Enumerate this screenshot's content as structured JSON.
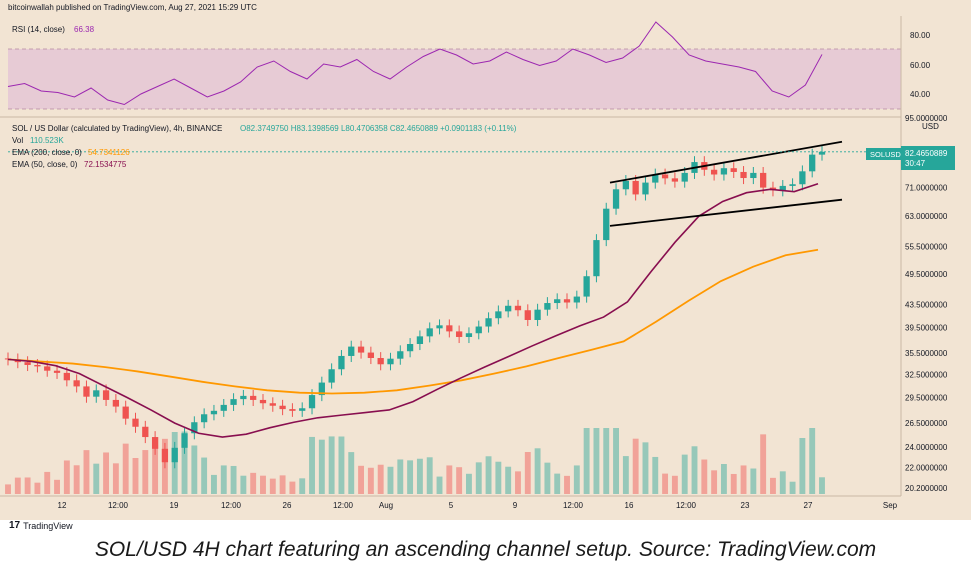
{
  "header": {
    "text": "bitcoinwallah published on TradingView.com, Aug 27, 2021 15:29 UTC"
  },
  "rsi": {
    "label": "RSI (14, close)",
    "value": "66.38",
    "ticks": [
      "80.00",
      "60.00",
      "40.00"
    ]
  },
  "legend": {
    "symbol_line": "SOL / US Dollar (calculated by TradingView), 4h, BINANCE",
    "ohlc": "O82.3749750  H83.1398569  L80.4706358  C82.4650889  +0.0901183 (+0.11%)",
    "vol_label": "Vol",
    "vol_value": "110.523K",
    "ema200_label": "EMA (200, close, 0)",
    "ema200_value": "54.7341126",
    "ema50_label": "EMA (50, close, 0)",
    "ema50_value": "72.1534775"
  },
  "price_axis": {
    "currency": "USD",
    "top_label": "95.0000000",
    "ticks": [
      "82.4650889",
      "71.0000000",
      "63.0000000",
      "55.5000000",
      "49.5000000",
      "43.5000000",
      "39.5000000",
      "35.5000000",
      "32.5000000",
      "29.5000000",
      "26.5000000",
      "24.0000000",
      "22.0000000",
      "20.2000000"
    ],
    "tag_symbol": "SOLUSD",
    "tag_price": "82.4650889",
    "tag_countdown": "30:47"
  },
  "time_axis": {
    "labels": [
      "12",
      "12:00",
      "19",
      "12:00",
      "26",
      "12:00",
      "Aug",
      "5",
      "9",
      "12:00",
      "16",
      "12:00",
      "23",
      "27",
      "Sep"
    ]
  },
  "branding": {
    "logo_text": "TradingView",
    "logo_mark": "17"
  },
  "caption": "SOL/USD 4H chart featuring an ascending channel setup. Source: TradingView.com",
  "colors": {
    "background": "#f2e4d3",
    "rsi_band": "#e7cbd5",
    "rsi_line": "#9c27b0",
    "ema200": "#ff9800",
    "ema50": "#880e4f",
    "up": "#26a69a",
    "down": "#ef5350",
    "channel": "#000000"
  },
  "chart_data": {
    "type": "candlestick",
    "symbol": "SOLUSD",
    "timeframe": "4h",
    "price_scale": "log",
    "price_range": [
      20.2,
      95.0
    ],
    "closes": [
      34.6,
      34.2,
      33.8,
      33.6,
      33.0,
      32.7,
      31.7,
      30.9,
      29.6,
      30.4,
      29.2,
      28.4,
      27.0,
      26.1,
      25.0,
      23.8,
      22.5,
      23.9,
      25.4,
      26.6,
      27.5,
      27.9,
      28.6,
      29.3,
      29.7,
      29.2,
      28.8,
      28.5,
      28.1,
      27.9,
      28.2,
      29.8,
      31.4,
      33.2,
      35.1,
      36.5,
      35.6,
      34.8,
      33.9,
      34.7,
      35.8,
      36.9,
      38.1,
      39.4,
      39.9,
      38.9,
      38.0,
      38.6,
      39.7,
      41.1,
      42.3,
      43.3,
      42.5,
      40.8,
      42.6,
      43.8,
      44.5,
      43.9,
      45.0,
      49.0,
      57.0,
      65.0,
      70.5,
      73.0,
      69.0,
      72.5,
      75.0,
      73.8,
      72.8,
      75.5,
      79.0,
      76.5,
      75.0,
      77.0,
      75.8,
      73.9,
      75.5,
      71.0,
      70.2,
      71.5,
      72.0,
      76.0,
      81.5,
      82.47
    ],
    "ema50": [
      34.6,
      34.3,
      33.7,
      32.6,
      31.0,
      29.5,
      28.0,
      26.5,
      25.4,
      25.0,
      25.3,
      26.0,
      26.6,
      27.1,
      27.4,
      27.7,
      28.0,
      29.0,
      30.5,
      32.0,
      33.5,
      35.0,
      36.6,
      38.2,
      39.8,
      41.3,
      44.0,
      50.0,
      56.5,
      63.0,
      67.0,
      69.5,
      70.5,
      69.8,
      72.15
    ],
    "ema200": [
      34.6,
      34.3,
      34.0,
      33.5,
      32.9,
      32.2,
      31.5,
      30.9,
      30.4,
      30.1,
      30.0,
      30.1,
      30.4,
      31.0,
      31.7,
      32.6,
      33.6,
      34.8,
      36.0,
      37.3,
      40.5,
      44.2,
      48.0,
      51.0,
      53.5,
      54.73
    ],
    "rsi": [
      45,
      47,
      42,
      41,
      38,
      44,
      36,
      33,
      40,
      45,
      50,
      44,
      38,
      42,
      48,
      58,
      62,
      55,
      50,
      60,
      58,
      63,
      55,
      50,
      58,
      65,
      70,
      66,
      60,
      62,
      68,
      63,
      59,
      62,
      70,
      66,
      61,
      64,
      72,
      88,
      78,
      66,
      62,
      60,
      58,
      55,
      42,
      38,
      46,
      66.38
    ],
    "channel_upper": [
      {
        "price": 72.5
      },
      {
        "price": 86.0
      }
    ],
    "channel_lower": [
      {
        "price": 60.5
      },
      {
        "price": 67.5
      }
    ]
  }
}
